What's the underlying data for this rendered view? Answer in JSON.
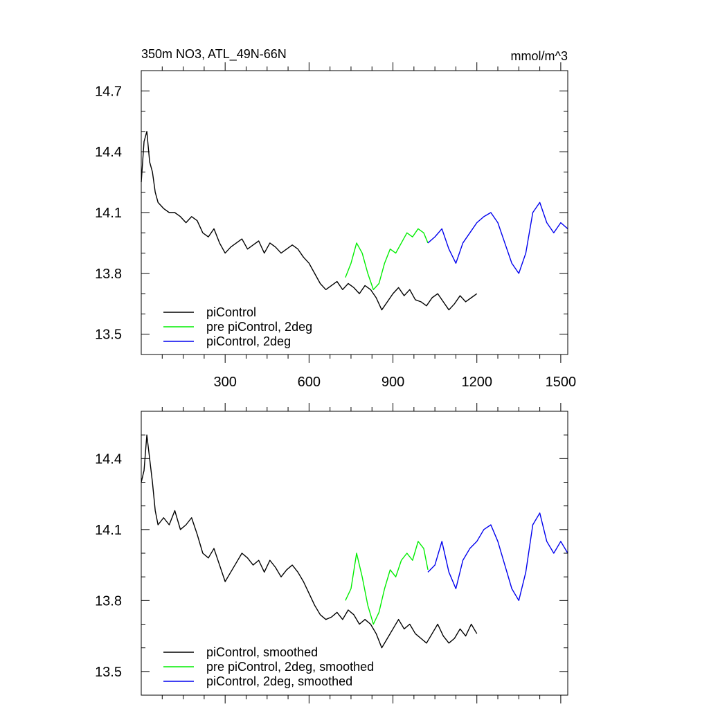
{
  "figure": {
    "title_left": "350m NO3, ATL_49N-66N",
    "title_right": "mmol/m^3"
  },
  "colors": {
    "picontrol": "#000000",
    "pre_picontrol_2deg": "#00ee00",
    "picontrol_2deg": "#0000ee"
  },
  "chart_data": [
    {
      "type": "line",
      "panel": "top",
      "xlim": [
        0,
        1525
      ],
      "ylim": [
        13.4,
        14.8
      ],
      "x_ticks": [
        300,
        600,
        900,
        1200,
        1500
      ],
      "x_tick_labels": [
        "300",
        "600",
        "900",
        "1200",
        "1500"
      ],
      "y_ticks": [
        13.5,
        13.8,
        14.1,
        14.4,
        14.7
      ],
      "y_tick_labels": [
        "13.5",
        "13.8",
        "14.1",
        "14.4",
        "14.7"
      ],
      "grid": false,
      "legend_position": "bottom-left",
      "series": [
        {
          "name": "piControl",
          "color_key": "picontrol",
          "x": [
            0,
            10,
            20,
            30,
            40,
            50,
            60,
            80,
            100,
            120,
            140,
            160,
            180,
            200,
            220,
            240,
            260,
            280,
            300,
            320,
            340,
            360,
            380,
            400,
            420,
            440,
            460,
            480,
            500,
            520,
            540,
            560,
            580,
            600,
            620,
            640,
            660,
            680,
            700,
            720,
            740,
            760,
            780,
            800,
            820,
            840,
            860,
            880,
            900,
            920,
            940,
            960,
            980,
            1000,
            1020,
            1040,
            1060,
            1080,
            1100,
            1120,
            1140,
            1160,
            1180,
            1200
          ],
          "y": [
            14.25,
            14.45,
            14.5,
            14.35,
            14.3,
            14.2,
            14.15,
            14.12,
            14.1,
            14.1,
            14.08,
            14.05,
            14.08,
            14.06,
            14.0,
            13.98,
            14.02,
            13.95,
            13.9,
            13.93,
            13.95,
            13.97,
            13.92,
            13.94,
            13.96,
            13.9,
            13.95,
            13.93,
            13.9,
            13.92,
            13.94,
            13.92,
            13.88,
            13.85,
            13.8,
            13.75,
            13.72,
            13.74,
            13.76,
            13.72,
            13.75,
            13.73,
            13.7,
            13.74,
            13.72,
            13.68,
            13.62,
            13.66,
            13.7,
            13.73,
            13.69,
            13.72,
            13.67,
            13.66,
            13.64,
            13.68,
            13.7,
            13.66,
            13.62,
            13.65,
            13.69,
            13.66,
            13.68,
            13.7
          ]
        },
        {
          "name": "pre piControl, 2deg",
          "color_key": "pre_picontrol_2deg",
          "x": [
            730,
            750,
            770,
            790,
            810,
            830,
            850,
            870,
            890,
            910,
            930,
            950,
            970,
            990,
            1010,
            1025
          ],
          "y": [
            13.78,
            13.85,
            13.95,
            13.9,
            13.8,
            13.72,
            13.75,
            13.85,
            13.92,
            13.9,
            13.95,
            14.0,
            13.98,
            14.02,
            14.0,
            13.95
          ]
        },
        {
          "name": "piControl, 2deg",
          "color_key": "picontrol_2deg",
          "x": [
            1025,
            1050,
            1075,
            1100,
            1125,
            1150,
            1175,
            1200,
            1225,
            1250,
            1275,
            1300,
            1325,
            1350,
            1375,
            1400,
            1425,
            1450,
            1475,
            1500,
            1525
          ],
          "y": [
            13.95,
            13.98,
            14.02,
            13.92,
            13.85,
            13.95,
            14.0,
            14.05,
            14.08,
            14.1,
            14.05,
            13.95,
            13.85,
            13.8,
            13.9,
            14.1,
            14.15,
            14.05,
            14.0,
            14.05,
            14.02
          ]
        }
      ]
    },
    {
      "type": "line",
      "panel": "bottom",
      "xlim": [
        0,
        1525
      ],
      "ylim": [
        13.4,
        14.6
      ],
      "x_ticks": [
        300,
        600,
        900,
        1200,
        1500
      ],
      "x_tick_labels": [
        "",
        "",
        "",
        "",
        ""
      ],
      "y_ticks": [
        13.5,
        13.8,
        14.1,
        14.4
      ],
      "y_tick_labels": [
        "13.5",
        "13.8",
        "14.1",
        "14.4"
      ],
      "grid": false,
      "legend_position": "bottom-left",
      "series": [
        {
          "name": "piControl, smoothed",
          "color_key": "picontrol",
          "x": [
            0,
            10,
            20,
            30,
            40,
            50,
            60,
            80,
            100,
            120,
            140,
            160,
            180,
            200,
            220,
            240,
            260,
            280,
            300,
            320,
            340,
            360,
            380,
            400,
            420,
            440,
            460,
            480,
            500,
            520,
            540,
            560,
            580,
            600,
            620,
            640,
            660,
            680,
            700,
            720,
            740,
            760,
            780,
            800,
            820,
            840,
            860,
            880,
            900,
            920,
            940,
            960,
            980,
            1000,
            1020,
            1040,
            1060,
            1080,
            1100,
            1120,
            1140,
            1160,
            1180,
            1200
          ],
          "y": [
            14.3,
            14.35,
            14.5,
            14.4,
            14.3,
            14.18,
            14.12,
            14.15,
            14.12,
            14.18,
            14.1,
            14.12,
            14.15,
            14.08,
            14.0,
            13.98,
            14.02,
            13.95,
            13.88,
            13.92,
            13.96,
            14.0,
            13.98,
            13.95,
            13.97,
            13.92,
            13.97,
            13.94,
            13.9,
            13.93,
            13.95,
            13.92,
            13.88,
            13.83,
            13.78,
            13.74,
            13.72,
            13.73,
            13.75,
            13.72,
            13.76,
            13.74,
            13.7,
            13.72,
            13.7,
            13.66,
            13.6,
            13.64,
            13.68,
            13.72,
            13.68,
            13.7,
            13.66,
            13.64,
            13.62,
            13.66,
            13.7,
            13.65,
            13.62,
            13.64,
            13.68,
            13.65,
            13.7,
            13.66
          ]
        },
        {
          "name": "pre piControl, 2deg, smoothed",
          "color_key": "pre_picontrol_2deg",
          "x": [
            730,
            750,
            770,
            790,
            810,
            830,
            850,
            870,
            890,
            910,
            930,
            950,
            970,
            990,
            1010,
            1025
          ],
          "y": [
            13.8,
            13.85,
            14.0,
            13.9,
            13.78,
            13.7,
            13.75,
            13.85,
            13.93,
            13.9,
            13.97,
            14.0,
            13.97,
            14.05,
            14.02,
            13.93
          ]
        },
        {
          "name": "piControl, 2deg, smoothed",
          "color_key": "picontrol_2deg",
          "x": [
            1025,
            1050,
            1075,
            1100,
            1125,
            1150,
            1175,
            1200,
            1225,
            1250,
            1275,
            1300,
            1325,
            1350,
            1375,
            1400,
            1425,
            1450,
            1475,
            1500,
            1525
          ],
          "y": [
            13.92,
            13.95,
            14.05,
            13.92,
            13.85,
            13.97,
            14.02,
            14.05,
            14.1,
            14.12,
            14.05,
            13.95,
            13.85,
            13.8,
            13.92,
            14.12,
            14.17,
            14.05,
            14.0,
            14.05,
            14.0
          ]
        }
      ]
    }
  ]
}
